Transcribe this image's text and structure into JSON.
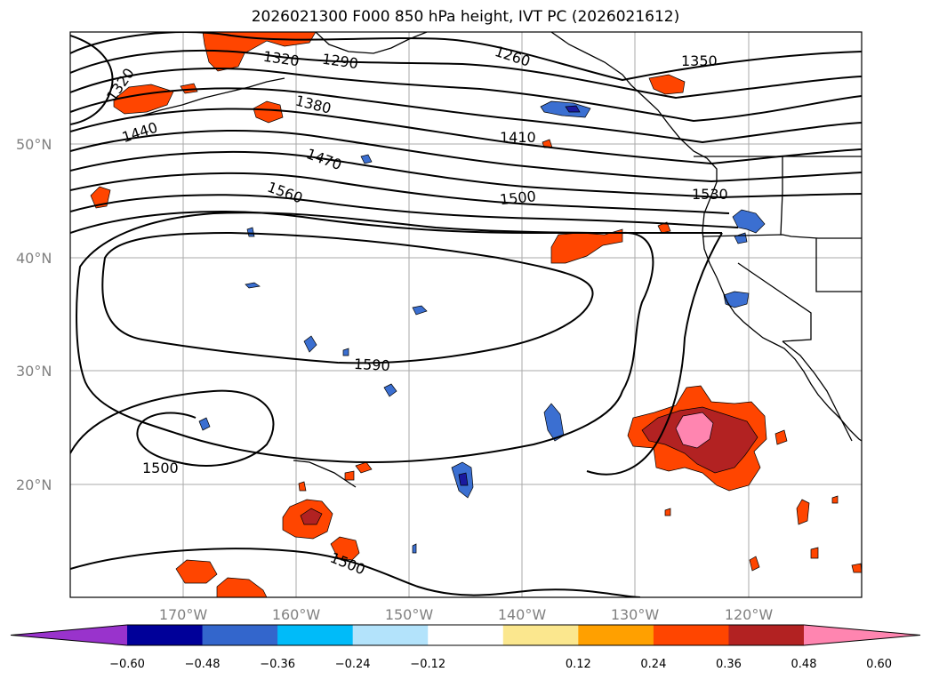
{
  "title": "2026021300 F000 850 hPa height, IVT PC (2026021612)",
  "latitude_labels": [
    "50°N",
    "40°N",
    "30°N",
    "20°N"
  ],
  "longitude_labels": [
    "170°W",
    "160°W",
    "150°W",
    "140°W",
    "130°W",
    "120°W"
  ],
  "contour_labels": [
    "1320",
    "1290",
    "1260",
    "1350",
    "1320",
    "1440",
    "1380",
    "1410",
    "1470",
    "1500",
    "1530",
    "1560",
    "1590",
    "1500",
    "1500"
  ],
  "colorbar": {
    "tick_labels": [
      "−0.60",
      "−0.48",
      "−0.36",
      "−0.24",
      "−0.12",
      "0.12",
      "0.24",
      "0.36",
      "0.48",
      "0.60"
    ],
    "colors": [
      "#9933cc",
      "#000099",
      "#3366cc",
      "#00bbf9",
      "#b3e3fb",
      "#ffffff",
      "#fbe78e",
      "#ffa000",
      "#ff4500",
      "#b22222",
      "#ff85b0"
    ]
  },
  "map_colors": {
    "neg_light": "#3b6fd1",
    "neg_dark": "#1a1a9e",
    "pos_orange": "#ff4500",
    "pos_yellow": "#ffa000",
    "pos_dark": "#b22222",
    "pos_pink": "#ff85b0"
  }
}
